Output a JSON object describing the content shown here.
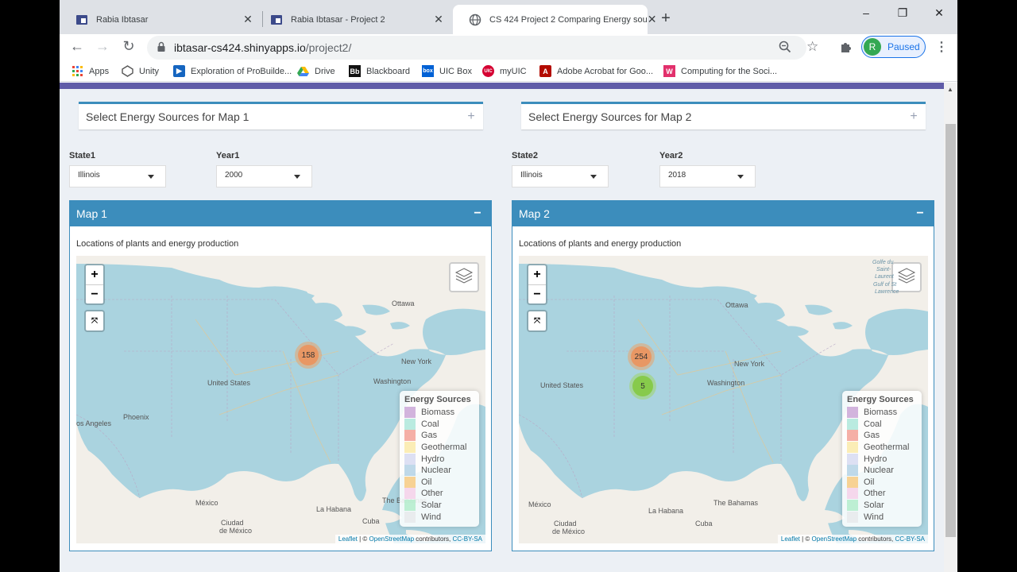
{
  "tabs": [
    {
      "title": "Rabia Ibtasar",
      "active": false
    },
    {
      "title": "Rabia Ibtasar - Project 2",
      "active": false
    },
    {
      "title": "CS 424 Project 2 Comparing Energy sou",
      "active": true
    }
  ],
  "window_controls": {
    "minimize": "–",
    "restore": "❐",
    "close": "✕"
  },
  "toolbar": {
    "url_host": "ibtasar-cs424.shinyapps.io",
    "url_path": "/project2/",
    "profile_initial": "R",
    "profile_status": "Paused"
  },
  "bookmarks": [
    {
      "label": "Apps",
      "icon": "apps-grid-icon"
    },
    {
      "label": "Unity",
      "icon": "unity-icon"
    },
    {
      "label": "Exploration of ProBuilde...",
      "icon": "play-icon"
    },
    {
      "label": "Drive",
      "icon": "drive-icon"
    },
    {
      "label": "Blackboard",
      "icon": "blackboard-icon",
      "badge": "Bb"
    },
    {
      "label": "UIC Box",
      "icon": "box-icon",
      "badge": "box"
    },
    {
      "label": "myUIC",
      "icon": "uic-icon",
      "badge": "UIC"
    },
    {
      "label": "Adobe Acrobat for Goo...",
      "icon": "acrobat-icon"
    },
    {
      "label": "Computing for the Soci...",
      "icon": "w-icon",
      "badge": "W"
    }
  ],
  "panels": [
    {
      "collapse_title": "Select Energy Sources for Map 1",
      "state_label": "State1",
      "state_value": "Illinois",
      "year_label": "Year1",
      "year_value": "2000",
      "map_title": "Map 1",
      "map_caption": "Locations of plants and energy production",
      "clusters": [
        {
          "count": "158",
          "color": "#f0a060"
        }
      ]
    },
    {
      "collapse_title": "Select Energy Sources for Map 2",
      "state_label": "State2",
      "state_value": "Illinois",
      "year_label": "Year2",
      "year_value": "2018",
      "map_title": "Map 2",
      "map_caption": "Locations of plants and energy production",
      "clusters": [
        {
          "count": "254",
          "color": "#f0a060"
        },
        {
          "count": "5",
          "color": "#9fd66a"
        }
      ]
    }
  ],
  "map_labels": {
    "ottawa": "Ottawa",
    "newyork": "New York",
    "washington": "Washington",
    "us": "United States",
    "phoenix": "Phoenix",
    "losangeles": "os Angeles",
    "mexico": "México",
    "havana": "La Habana",
    "bahamas": "The Bahamas",
    "cuba": "Cuba",
    "ciudad": "Ciudad",
    "demexico": "de México",
    "quebec1": "Golfe du",
    "quebec2": "Saint-",
    "quebec3": "Laurent",
    "quebec4": "Gulf of St",
    "quebec5": "Lawrence"
  },
  "legend": {
    "title": "Energy Sources",
    "items": [
      {
        "label": "Biomass",
        "color": "#c39bd3"
      },
      {
        "label": "Coal",
        "color": "#a3e4d7"
      },
      {
        "label": "Gas",
        "color": "#f1948a"
      },
      {
        "label": "Geothermal",
        "color": "#f9e79f"
      },
      {
        "label": "Hydro",
        "color": "#d2d6f0"
      },
      {
        "label": "Nuclear",
        "color": "#a9cce3"
      },
      {
        "label": "Oil",
        "color": "#f8c471"
      },
      {
        "label": "Other",
        "color": "#f5cbe7"
      },
      {
        "label": "Solar",
        "color": "#abebc6"
      },
      {
        "label": "Wind",
        "color": "#e5e7e9"
      }
    ]
  },
  "attribution": {
    "leaflet": "Leaflet",
    "sep": " | © ",
    "osm": "OpenStreetMap",
    "mid": " contributors, ",
    "license": "CC-BY-SA"
  },
  "colors": {
    "accent": "#3c8dbc",
    "header_purple": "#605ca8",
    "page_bg": "#ecf0f5"
  }
}
